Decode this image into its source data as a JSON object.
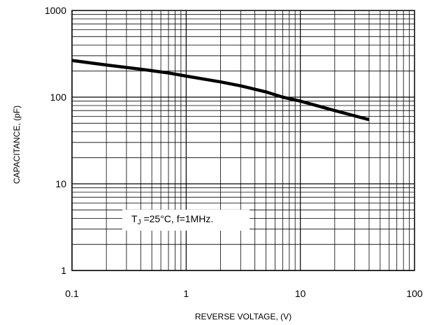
{
  "chart_data": {
    "type": "line",
    "title": "",
    "xlabel": "REVERSE VOLTAGE, (V)",
    "ylabel": "CAPACITANCE, (pF)",
    "xscale": "log",
    "yscale": "log",
    "xlim": [
      0.1,
      100
    ],
    "ylim": [
      1,
      1000
    ],
    "grid": true,
    "x_ticks": [
      "0.1",
      "1",
      "10",
      "100"
    ],
    "y_ticks": [
      "1",
      "10",
      "100",
      "1000"
    ],
    "annotation": {
      "prefix": "T",
      "subscript": "J",
      "suffix": " =25°C, f=1MHz."
    },
    "series": [
      {
        "x": [
          0.1,
          0.2,
          0.4,
          0.7,
          1.0,
          2.0,
          3.0,
          5.0,
          7.0,
          10.0,
          20.0,
          40.0
        ],
        "y": [
          265,
          235,
          210,
          190,
          175,
          150,
          135,
          115,
          100,
          90,
          70,
          55
        ],
        "color": "#000000"
      }
    ]
  }
}
